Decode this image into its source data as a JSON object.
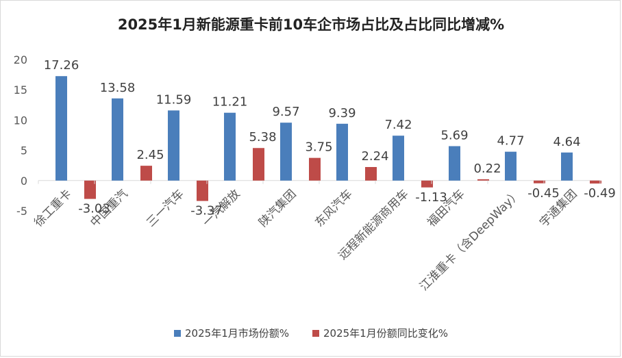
{
  "chart_data": {
    "type": "bar",
    "title": "2025年1月新能源重卡前10车企市场占比及占比同比增减%",
    "categories": [
      "徐工重卡",
      "中国重汽",
      "三一汽车",
      "一汽解放",
      "陕汽集团",
      "东风汽车",
      "远程新能源商用车",
      "福田汽车",
      "江淮重卡（含DeepWay）",
      "宇通集团"
    ],
    "series": [
      {
        "name": "2025年1月市场份额%",
        "color": "#4a7ebb",
        "values": [
          17.26,
          13.58,
          11.59,
          11.21,
          9.57,
          9.39,
          7.42,
          5.69,
          4.77,
          4.64
        ]
      },
      {
        "name": "2025年1月份额同比变化%",
        "color": "#be4b48",
        "values": [
          -3.03,
          2.45,
          -3.37,
          5.38,
          3.75,
          2.24,
          -1.13,
          0.22,
          -0.45,
          -0.49
        ]
      }
    ],
    "data_labels": [
      [
        "17.26",
        "13.58",
        "11.59",
        "11.21",
        "9.57",
        "9.39",
        "7.42",
        "5.69",
        "4.77",
        "4.64"
      ],
      [
        "-3.03",
        "2.45",
        "-3.37",
        "5.38",
        "3.75",
        "2.24",
        "-1.13",
        "0.22",
        "-0.45",
        "-0.49"
      ]
    ],
    "ylim": [
      -5,
      20
    ],
    "yticks": [
      -5,
      0,
      5,
      10,
      15,
      20
    ],
    "ytick_labels": [
      "-5",
      "0",
      "5",
      "10",
      "15",
      "20"
    ],
    "xlabel": "",
    "ylabel": "",
    "grid": false,
    "legend_position": "bottom"
  }
}
